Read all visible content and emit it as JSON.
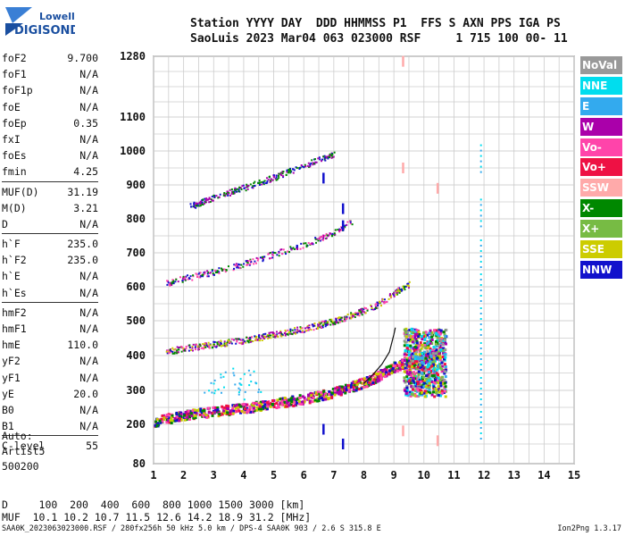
{
  "logo": {
    "line1": "Lowell",
    "line2": "DIGISONDE"
  },
  "header": {
    "line1": "Station YYYY DAY  DDD HHMMSS P1  FFS S AXN PPS IGA PS",
    "line2": "SaoLuis 2023 Mar04 063 023000 RSF     1 715 100 00- 11"
  },
  "params": {
    "group1": [
      {
        "label": "foF2",
        "value": "9.700"
      },
      {
        "label": "foF1",
        "value": "N/A"
      },
      {
        "label": "foF1p",
        "value": "N/A"
      },
      {
        "label": "foE",
        "value": "N/A"
      },
      {
        "label": "foEp",
        "value": "0.35"
      },
      {
        "label": "fxI",
        "value": "N/A"
      },
      {
        "label": "foEs",
        "value": "N/A"
      },
      {
        "label": "fmin",
        "value": "4.25"
      }
    ],
    "group2": [
      {
        "label": "MUF(D)",
        "value": "31.19"
      },
      {
        "label": "M(D)",
        "value": "3.21"
      },
      {
        "label": "D",
        "value": "N/A"
      }
    ],
    "group3": [
      {
        "label": "h`F",
        "value": "235.0"
      },
      {
        "label": "h`F2",
        "value": "235.0"
      },
      {
        "label": "h`E",
        "value": "N/A"
      },
      {
        "label": "h`Es",
        "value": "N/A"
      }
    ],
    "group4": [
      {
        "label": "hmF2",
        "value": "N/A"
      },
      {
        "label": "hmF1",
        "value": "N/A"
      },
      {
        "label": "hmE",
        "value": "110.0"
      },
      {
        "label": "yF2",
        "value": "N/A"
      },
      {
        "label": "yF1",
        "value": "N/A"
      },
      {
        "label": "yE",
        "value": "20.0"
      },
      {
        "label": "B0",
        "value": "N/A"
      },
      {
        "label": "B1",
        "value": "N/A"
      }
    ],
    "group5": [
      {
        "label": "C-level",
        "value": "55"
      }
    ]
  },
  "auto": {
    "line1": "Auto:",
    "line2": "Artist5",
    "line3": "500200"
  },
  "legend": [
    {
      "label": "NoVal",
      "color": "#999999"
    },
    {
      "label": "NNE",
      "color": "#00ddee"
    },
    {
      "label": "E",
      "color": "#33aaee"
    },
    {
      "label": "W",
      "color": "#aa00aa"
    },
    {
      "label": "Vo-",
      "color": "#ff44aa"
    },
    {
      "label": "Vo+",
      "color": "#ee1144"
    },
    {
      "label": "SSW",
      "color": "#ffaaaa"
    },
    {
      "label": "X-",
      "color": "#008800"
    },
    {
      "label": "X+",
      "color": "#77bb44"
    },
    {
      "label": "SSE",
      "color": "#cccc00"
    },
    {
      "label": "NNW",
      "color": "#1111cc"
    }
  ],
  "bottom": {
    "line1": "D     100  200  400  600  800 1000 1500 3000 [km]",
    "line2": "MUF  10.1 10.2 10.7 11.5 12.6 14.2 18.9 31.2 [MHz]"
  },
  "footer": "SAA0K_2023063023000.RSF / 280fx256h 50 kHz 5.0 km / DPS-4 SAA0K 903 / 2.6 S 315.8 E",
  "version": "Ion2Png 1.3.17",
  "chart_data": {
    "type": "scatter",
    "xlim": [
      1,
      15
    ],
    "ylim": [
      80,
      1280
    ],
    "x_ticks": [
      1,
      2,
      3,
      4,
      5,
      6,
      7,
      8,
      9,
      10,
      11,
      12,
      13,
      14,
      15
    ],
    "y_ticks": [
      80,
      200,
      300,
      400,
      500,
      600,
      700,
      800,
      900,
      1000,
      1100,
      1280
    ],
    "grid": true,
    "traces": [
      {
        "name": "1st hop F trace",
        "color_mix": [
          "#ff44aa",
          "#008800",
          "#1111cc",
          "#aa00aa",
          "#ee1144",
          "#cccc00"
        ],
        "points": [
          [
            1.0,
            205
          ],
          [
            1.5,
            215
          ],
          [
            2,
            225
          ],
          [
            3,
            235
          ],
          [
            4,
            245
          ],
          [
            5,
            258
          ],
          [
            6,
            272
          ],
          [
            7,
            292
          ],
          [
            8,
            320
          ],
          [
            8.5,
            340
          ],
          [
            9,
            365
          ],
          [
            9.5,
            380
          ],
          [
            10,
            390
          ],
          [
            10.5,
            400
          ]
        ]
      },
      {
        "name": "2nd hop F trace",
        "color_mix": [
          "#aa00aa",
          "#ff44aa",
          "#008800",
          "#1111cc",
          "#cccc00"
        ],
        "points": [
          [
            1.4,
            410
          ],
          [
            2,
            418
          ],
          [
            3,
            430
          ],
          [
            4,
            442
          ],
          [
            5,
            458
          ],
          [
            6,
            475
          ],
          [
            7,
            497
          ],
          [
            8,
            528
          ],
          [
            8.5,
            548
          ],
          [
            9,
            580
          ],
          [
            9.5,
            605
          ]
        ]
      },
      {
        "name": "3rd hop F trace",
        "color_mix": [
          "#aa00aa",
          "#1111cc",
          "#ff44aa",
          "#008800"
        ],
        "points": [
          [
            1.4,
            608
          ],
          [
            2,
            622
          ],
          [
            3,
            642
          ],
          [
            4,
            665
          ],
          [
            5,
            695
          ],
          [
            6,
            722
          ],
          [
            7,
            760
          ],
          [
            7.6,
            790
          ]
        ]
      },
      {
        "name": "4th hop F trace",
        "color_mix": [
          "#aa00aa",
          "#1111cc",
          "#008800"
        ],
        "points": [
          [
            2.2,
            835
          ],
          [
            3,
            860
          ],
          [
            4,
            890
          ],
          [
            5,
            920
          ],
          [
            6,
            955
          ],
          [
            7,
            990
          ]
        ]
      },
      {
        "name": "E sporadic cluster",
        "color_mix": [
          "#33aaee",
          "#00ddee"
        ],
        "points": [
          [
            3,
            310
          ],
          [
            3.5,
            330
          ],
          [
            4,
            345
          ],
          [
            4.2,
            300
          ]
        ]
      },
      {
        "name": "NNE column",
        "color_mix": [
          "#00ddee",
          "#33aaee"
        ],
        "points": [
          [
            11.9,
            200
          ],
          [
            11.9,
            300
          ],
          [
            11.9,
            400
          ],
          [
            11.9,
            500
          ],
          [
            11.9,
            600
          ],
          [
            11.9,
            700
          ],
          [
            11.9,
            820
          ],
          [
            11.9,
            980
          ]
        ]
      }
    ],
    "curve": {
      "name": "O-trace",
      "color": "#111111",
      "points": [
        [
          8,
          320
        ],
        [
          8.3,
          345
        ],
        [
          8.6,
          375
        ],
        [
          8.85,
          410
        ],
        [
          9.0,
          460
        ],
        [
          9.05,
          480
        ]
      ]
    },
    "spread_cluster": {
      "x": [
        9.3,
        10.7
      ],
      "y": [
        285,
        480
      ]
    },
    "marks": [
      {
        "x": 6.65,
        "y": 920,
        "color": "#1111cc"
      },
      {
        "x": 6.65,
        "y": 185,
        "color": "#1111cc"
      },
      {
        "x": 7.3,
        "y": 830,
        "color": "#1111cc"
      },
      {
        "x": 7.3,
        "y": 780,
        "color": "#1111cc"
      },
      {
        "x": 7.3,
        "y": 140,
        "color": "#1111cc"
      },
      {
        "x": 9.3,
        "y": 1265,
        "color": "#ffaaaa"
      },
      {
        "x": 9.3,
        "y": 950,
        "color": "#ffaaaa"
      },
      {
        "x": 10.45,
        "y": 890,
        "color": "#ffaaaa"
      },
      {
        "x": 9.3,
        "y": 180,
        "color": "#ffaaaa"
      },
      {
        "x": 10.45,
        "y": 150,
        "color": "#ffaaaa"
      }
    ]
  }
}
